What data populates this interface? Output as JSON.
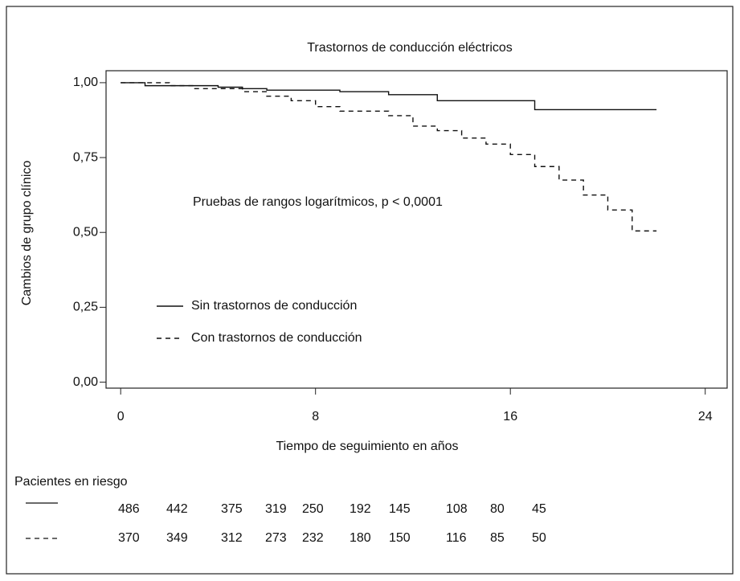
{
  "chart_data": {
    "type": "step",
    "title": "Trastornos de conducción eléctricos",
    "x_label": "Tiempo de seguimiento en años",
    "y_label": "Cambios de grupo clínico",
    "annotation": "Pruebas de rangos logarítmicos, p < 0,0001",
    "xlim": [
      -0.6,
      24.9
    ],
    "ylim": [
      -0.02,
      1.04
    ],
    "xticks": [
      0,
      8,
      16,
      24
    ],
    "yticks": [
      {
        "value": 0,
        "label": "0,00"
      },
      {
        "value": 0.25,
        "label": "0,25"
      },
      {
        "value": 0.5,
        "label": "0,50"
      },
      {
        "value": 0.75,
        "label": "0,75"
      },
      {
        "value": 1,
        "label": "1,00"
      }
    ],
    "series": [
      {
        "name": "Sin trastornos de conducción",
        "color": "#111",
        "dash": "none",
        "x": [
          0,
          1,
          4,
          5,
          6,
          9,
          11,
          13,
          17,
          22
        ],
        "values": [
          1,
          0.99,
          0.985,
          0.98,
          0.975,
          0.97,
          0.96,
          0.94,
          0.91,
          0.91
        ]
      },
      {
        "name": "Con trastornos de conducción",
        "color": "#111",
        "dash": "6 5",
        "x": [
          0,
          2,
          3,
          5,
          6,
          7,
          8,
          9,
          11,
          12,
          13,
          14,
          15,
          16,
          17,
          18,
          19,
          20,
          21,
          22
        ],
        "values": [
          1,
          0.99,
          0.98,
          0.97,
          0.955,
          0.94,
          0.92,
          0.905,
          0.89,
          0.855,
          0.84,
          0.815,
          0.795,
          0.76,
          0.72,
          0.675,
          0.625,
          0.575,
          0.505,
          0.505
        ]
      }
    ]
  },
  "risk_table": {
    "title": "Pacientes en riesgo",
    "rows": [
      [
        486,
        442,
        375,
        319,
        250,
        192,
        145,
        108,
        80,
        45
      ],
      [
        370,
        349,
        312,
        273,
        232,
        180,
        150,
        116,
        85,
        50
      ]
    ]
  }
}
